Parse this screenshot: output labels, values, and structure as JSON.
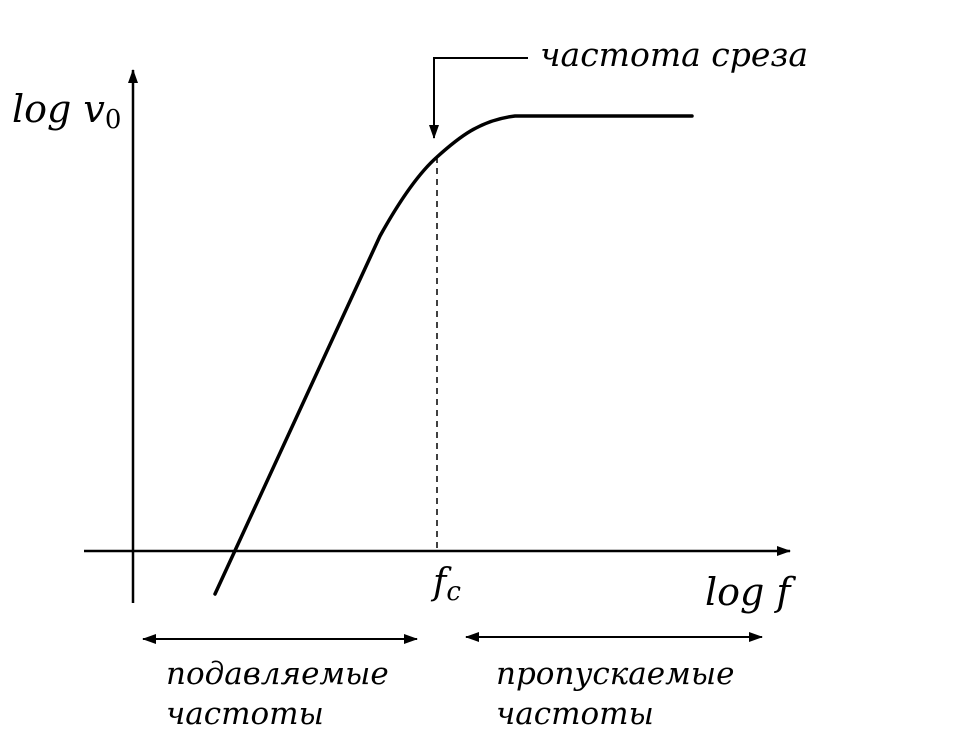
{
  "diagram": {
    "y_axis_label": "log v",
    "y_axis_subscript": "0",
    "x_axis_label": "log f",
    "cutoff_marker": "f",
    "cutoff_subscript": "c",
    "cutoff_annotation": "частота среза",
    "stop_band": {
      "line1": "подавляемые",
      "line2": "частоты"
    },
    "pass_band": {
      "line1": "пропускаемые",
      "line2": "частоты"
    }
  }
}
